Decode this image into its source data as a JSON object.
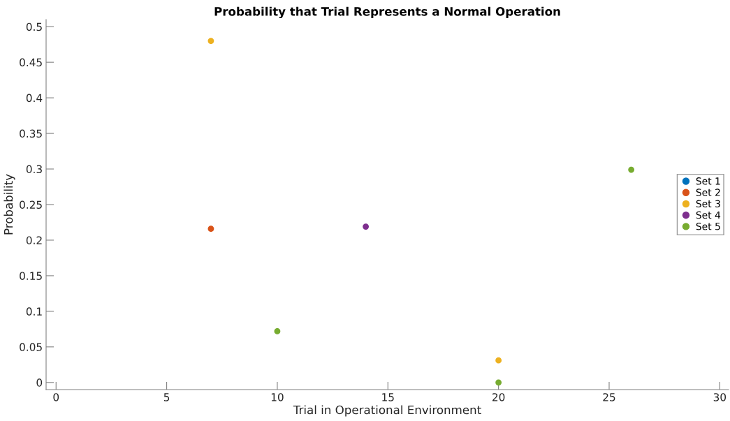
{
  "chart_data": {
    "type": "scatter",
    "title": "Probability that Trial Represents a Normal Operation",
    "xlabel": "Trial in Operational Environment",
    "ylabel": "Probability",
    "series": [
      {
        "name": "Set 1",
        "color": "#0072bd"
      },
      {
        "name": "Set 2",
        "color": "#d95319",
        "x": [
          7
        ],
        "values": [
          0.216
        ]
      },
      {
        "name": "Set 3",
        "color": "#edb120",
        "x": [
          7,
          20
        ],
        "values": [
          0.48,
          0.031
        ]
      },
      {
        "name": "Set 4",
        "color": "#7e2f8e",
        "x": [
          14
        ],
        "values": [
          0.219
        ]
      },
      {
        "name": "Set 5",
        "color": "#77ac30",
        "x": [
          10,
          20,
          26
        ],
        "values": [
          0.072,
          0,
          0.299
        ]
      }
    ],
    "xlim": [
      -0.45,
      30.4
    ],
    "ylim": [
      -0.01,
      0.51
    ],
    "xticks": [
      0,
      5,
      10,
      15,
      20,
      25,
      30
    ],
    "yticks": [
      0,
      0.05,
      0.1,
      0.15,
      0.2,
      0.25,
      0.3,
      0.35,
      0.4,
      0.45,
      0.5
    ],
    "grid": false,
    "legend": "right",
    "marker": "circle"
  }
}
